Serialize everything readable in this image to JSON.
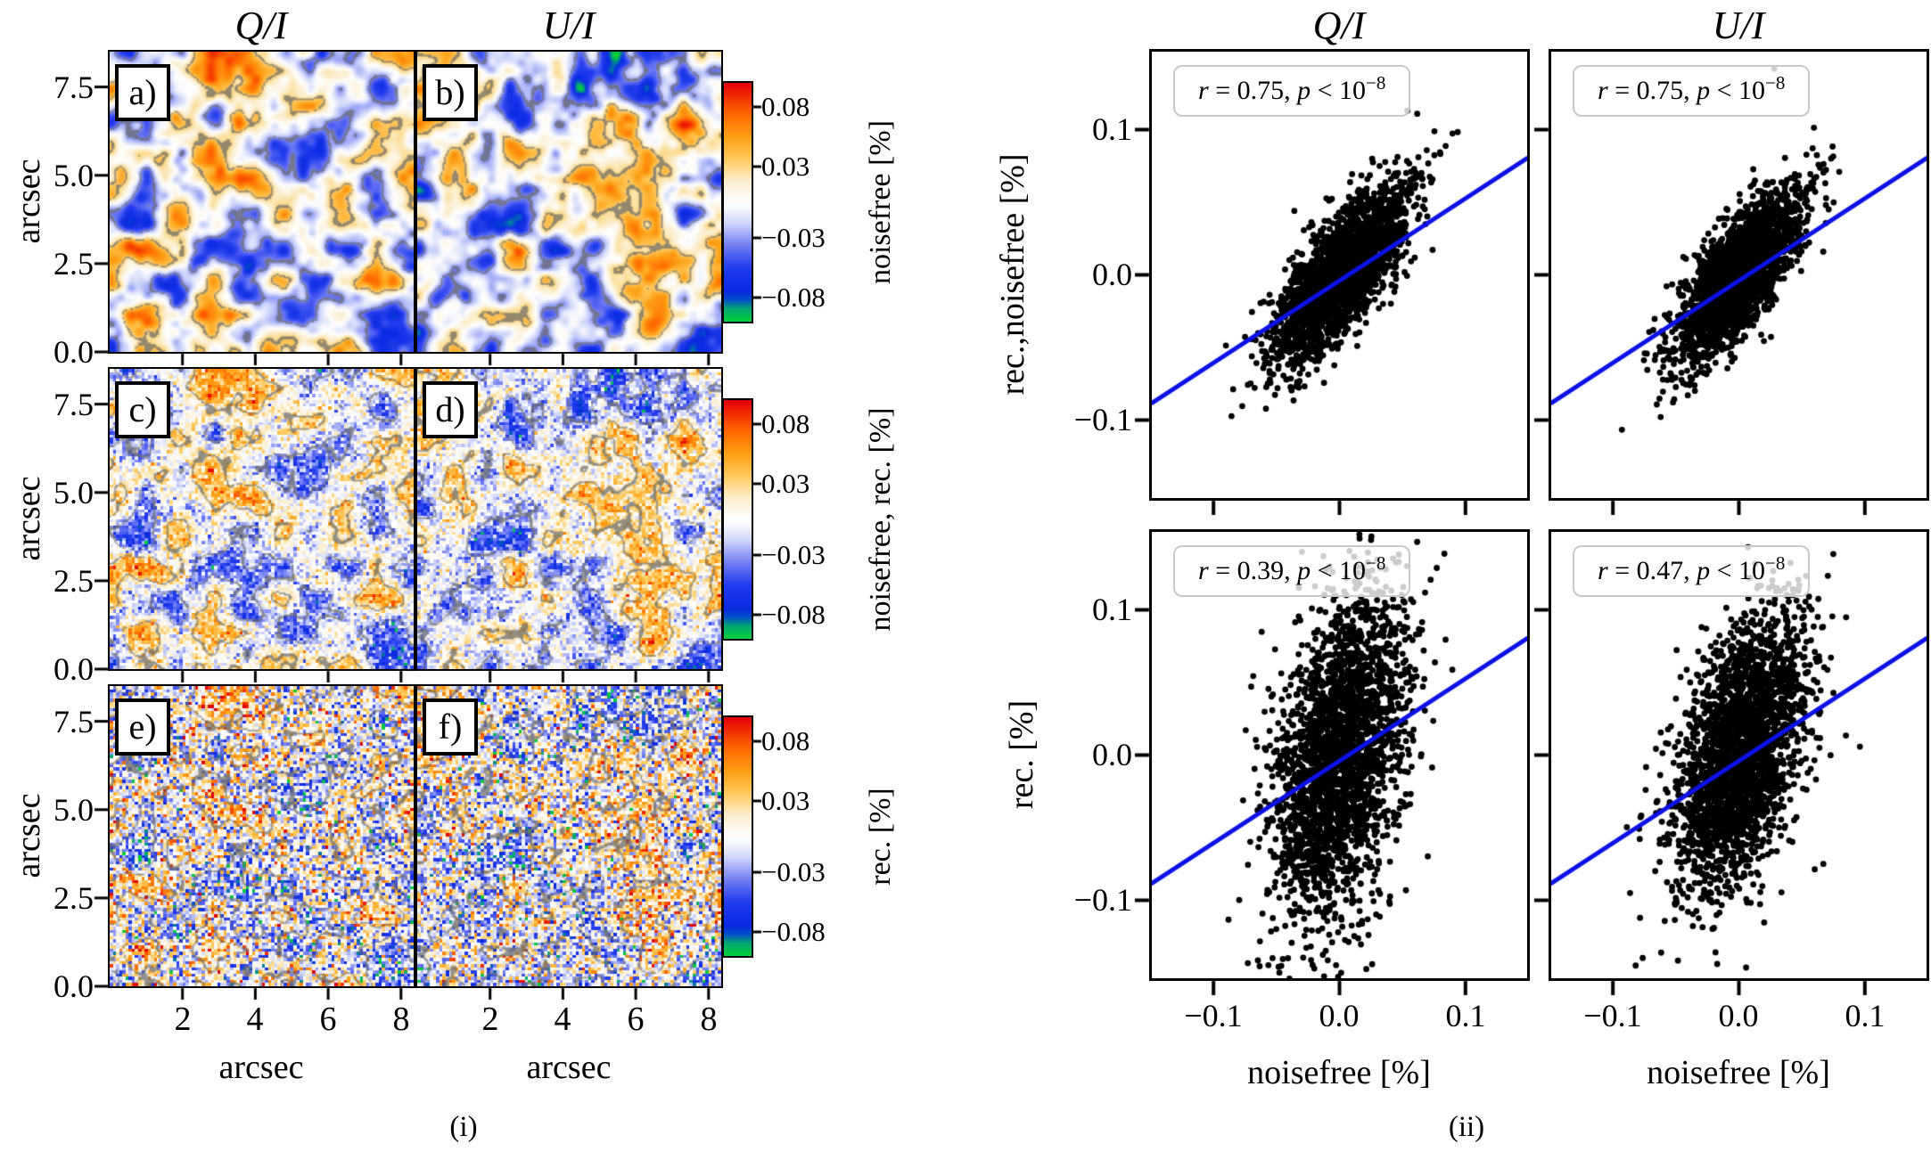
{
  "figure": {
    "left": {
      "caption": "(i)",
      "col_titles": [
        "Q/I",
        "U/I"
      ],
      "axis_label": "arcsec",
      "x_ticks": [
        "2",
        "4",
        "6",
        "8"
      ],
      "y_ticks": [
        "7.5",
        "5.0",
        "2.5",
        "0.0"
      ],
      "panel_labels": [
        "a)",
        "b)",
        "c)",
        "d)",
        "e)",
        "f)"
      ],
      "cbar_ticks": [
        "0.08",
        "0.03",
        "−0.03",
        "−0.08"
      ],
      "cbar_labels": [
        "noisefree [%]",
        "noisefree, rec. [%]",
        "rec. [%]"
      ]
    },
    "right": {
      "caption": "(ii)",
      "col_titles": [
        "Q/I",
        "U/I"
      ],
      "xlabel": "noisefree [%]",
      "ylabels": [
        "rec.,noisefree [%]",
        "rec. [%]"
      ],
      "x_ticks": [
        "−0.1",
        "0.0",
        "0.1"
      ],
      "y_ticks": [
        "0.1",
        "0.0",
        "−0.1"
      ],
      "annotations": [
        {
          "r_var": "r",
          "r_val": " = 0.75, ",
          "p_var": "p",
          "p_val": " < 10",
          "exp": "−8"
        },
        {
          "r_var": "r",
          "r_val": " = 0.75, ",
          "p_var": "p",
          "p_val": " < 10",
          "exp": "−8"
        },
        {
          "r_var": "r",
          "r_val": " = 0.39, ",
          "p_var": "p",
          "p_val": " < 10",
          "exp": "−8"
        },
        {
          "r_var": "r",
          "r_val": " = 0.47, ",
          "p_var": "p",
          "p_val": " < 10",
          "exp": "−8"
        }
      ]
    }
  },
  "chart_data": [
    {
      "type": "heatmap",
      "title": "(i) Q/I and U/I fractional polarization maps",
      "columns": [
        "Q/I",
        "U/I"
      ],
      "x_range": [
        0,
        8.5
      ],
      "y_range": [
        0,
        8.5
      ],
      "axis_unit": "arcsec",
      "xlabel": "arcsec",
      "ylabel": "arcsec",
      "x_tick_values": [
        2,
        4,
        6,
        8
      ],
      "y_tick_values": [
        7.5,
        5.0,
        2.5,
        0.0
      ],
      "value_range": [
        -0.1,
        0.1
      ],
      "cbar_tick_values": [
        0.08,
        0.03,
        -0.03,
        -0.08
      ],
      "contour_level": 0.033,
      "contour_color": "rgba(108,108,108,0.72)",
      "colormap_stops": [
        [
          -0.1,
          "#00cd3c"
        ],
        [
          -0.09,
          "#00aa6e"
        ],
        [
          -0.082,
          "#0050c8"
        ],
        [
          -0.075,
          "#0a28e1"
        ],
        [
          -0.055,
          "#233cee"
        ],
        [
          -0.035,
          "#7884f4"
        ],
        [
          -0.018,
          "#cdd4fa"
        ],
        [
          -0.006,
          "#f5f7fd"
        ],
        [
          0.0,
          "#ffffff"
        ],
        [
          0.006,
          "#fefaf0"
        ],
        [
          0.018,
          "#fceecd"
        ],
        [
          0.035,
          "#ffcd64"
        ],
        [
          0.055,
          "#ffa014"
        ],
        [
          0.075,
          "#ff6400"
        ],
        [
          0.09,
          "#f02800"
        ],
        [
          0.1,
          "#e1000a"
        ]
      ],
      "rows": [
        {
          "cbar_label": "noisefree [%]",
          "panels": [
            "a)",
            "b)"
          ],
          "field_scale": 1.0,
          "noise_sigma": 0.0,
          "pixelated": false
        },
        {
          "cbar_label": "noisefree, rec. [%]",
          "panels": [
            "c)",
            "d)"
          ],
          "field_scale": 0.75,
          "noise_sigma": 0.017,
          "pixelated": true
        },
        {
          "cbar_label": "rec. [%]",
          "panels": [
            "e)",
            "f)"
          ],
          "field_scale": 0.5,
          "noise_sigma": 0.036,
          "pixelated": true
        }
      ],
      "column_seeds": [
        101,
        202
      ],
      "field_sigma": 0.034,
      "grid_n": 96
    },
    {
      "type": "scatter",
      "title": "(ii) reconstructed vs noisefree polarization",
      "xlim": [
        -0.149,
        0.149
      ],
      "ylim": [
        -0.1537,
        0.1537
      ],
      "x_tick_values": [
        -0.1,
        0.0,
        0.1
      ],
      "y_tick_values": [
        0.1,
        0.0,
        -0.1
      ],
      "xlabel": "noisefree [%]",
      "marker_color": "#000000",
      "fit_line": {
        "slope": 0.566,
        "intercept": -0.004,
        "color": "#0a12e6",
        "x_span": [
          -0.149,
          0.149
        ],
        "width": 5
      },
      "panels": [
        {
          "column": "Q/I",
          "ylabel": "rec.,noisefree [%]",
          "r": 0.75,
          "p": "< 1e-8",
          "n": 2600,
          "sx": 0.026,
          "slope": 0.85,
          "resid_sigma": 0.0195,
          "seed": 11,
          "streak": 14
        },
        {
          "column": "U/I",
          "ylabel": "rec.,noisefree [%]",
          "r": 0.75,
          "p": "< 1e-8",
          "n": 2600,
          "sx": 0.024,
          "slope": 0.9,
          "resid_sigma": 0.019,
          "seed": 22,
          "streak": 10
        },
        {
          "column": "Q/I",
          "ylabel": "rec. [%]",
          "r": 0.39,
          "p": "< 1e-8",
          "n": 2600,
          "sx": 0.026,
          "slope": 0.85,
          "resid_sigma": 0.052,
          "seed": 33,
          "streak": 0
        },
        {
          "column": "U/I",
          "ylabel": "rec. [%]",
          "r": 0.47,
          "p": "< 1e-8",
          "n": 2600,
          "sx": 0.026,
          "slope": 0.85,
          "resid_sigma": 0.0415,
          "seed": 44,
          "streak": 0
        }
      ]
    }
  ]
}
